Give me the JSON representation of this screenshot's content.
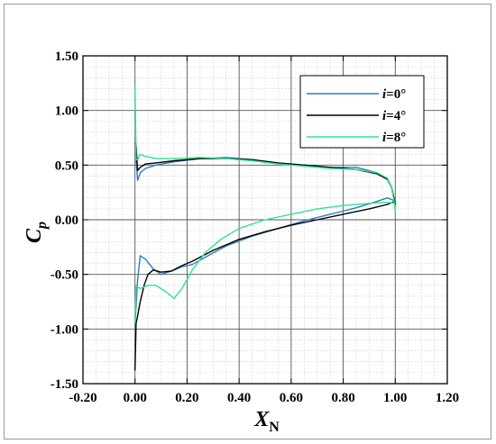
{
  "chart_data": {
    "type": "line",
    "xlabel": {
      "main": "X",
      "sub": "N"
    },
    "ylabel": {
      "main": "C",
      "sub": "p"
    },
    "xlim": [
      -0.2,
      1.2
    ],
    "ylim": [
      -1.5,
      1.5
    ],
    "xticks": [
      "-0.20",
      "0.00",
      "0.20",
      "0.40",
      "0.60",
      "0.80",
      "1.00",
      "1.20"
    ],
    "yticks": [
      "-1.50",
      "-1.00",
      "-0.50",
      "0.00",
      "0.50",
      "1.00",
      "1.50"
    ],
    "grid": "major-and-minor",
    "legend_position": "top-right",
    "series": [
      {
        "name": "i=0°",
        "color": "#2e7cc0",
        "upper": [
          [
            0.0,
            1.0
          ],
          [
            0.004,
            0.55
          ],
          [
            0.01,
            0.36
          ],
          [
            0.02,
            0.43
          ],
          [
            0.04,
            0.47
          ],
          [
            0.08,
            0.5
          ],
          [
            0.15,
            0.53
          ],
          [
            0.25,
            0.56
          ],
          [
            0.35,
            0.57
          ],
          [
            0.45,
            0.55
          ],
          [
            0.55,
            0.52
          ],
          [
            0.65,
            0.5
          ],
          [
            0.75,
            0.48
          ],
          [
            0.85,
            0.48
          ],
          [
            0.93,
            0.43
          ],
          [
            0.97,
            0.37
          ],
          [
            0.985,
            0.3
          ],
          [
            0.995,
            0.2
          ],
          [
            1.0,
            0.17
          ]
        ],
        "lower": [
          [
            0.0,
            -0.95
          ],
          [
            0.01,
            -0.55
          ],
          [
            0.02,
            -0.33
          ],
          [
            0.04,
            -0.36
          ],
          [
            0.07,
            -0.45
          ],
          [
            0.1,
            -0.5
          ],
          [
            0.14,
            -0.47
          ],
          [
            0.18,
            -0.43
          ],
          [
            0.22,
            -0.41
          ],
          [
            0.28,
            -0.33
          ],
          [
            0.35,
            -0.24
          ],
          [
            0.45,
            -0.15
          ],
          [
            0.55,
            -0.08
          ],
          [
            0.65,
            -0.01
          ],
          [
            0.75,
            0.05
          ],
          [
            0.85,
            0.11
          ],
          [
            0.92,
            0.16
          ],
          [
            0.97,
            0.2
          ],
          [
            1.0,
            0.17
          ]
        ]
      },
      {
        "name": "i=4°",
        "color": "#000000",
        "upper": [
          [
            0.0,
            0.7
          ],
          [
            0.004,
            0.68
          ],
          [
            0.01,
            0.45
          ],
          [
            0.02,
            0.48
          ],
          [
            0.04,
            0.51
          ],
          [
            0.08,
            0.52
          ],
          [
            0.15,
            0.54
          ],
          [
            0.25,
            0.56
          ],
          [
            0.35,
            0.56
          ],
          [
            0.45,
            0.55
          ],
          [
            0.55,
            0.52
          ],
          [
            0.65,
            0.5
          ],
          [
            0.75,
            0.48
          ],
          [
            0.85,
            0.46
          ],
          [
            0.93,
            0.42
          ],
          [
            0.97,
            0.37
          ],
          [
            0.985,
            0.3
          ],
          [
            0.995,
            0.2
          ],
          [
            1.0,
            0.14
          ]
        ],
        "lower": [
          [
            0.0,
            -1.38
          ],
          [
            0.004,
            -0.95
          ],
          [
            0.01,
            -0.88
          ],
          [
            0.02,
            -0.75
          ],
          [
            0.035,
            -0.6
          ],
          [
            0.05,
            -0.5
          ],
          [
            0.07,
            -0.46
          ],
          [
            0.1,
            -0.48
          ],
          [
            0.14,
            -0.47
          ],
          [
            0.18,
            -0.42
          ],
          [
            0.22,
            -0.38
          ],
          [
            0.3,
            -0.28
          ],
          [
            0.4,
            -0.18
          ],
          [
            0.5,
            -0.11
          ],
          [
            0.6,
            -0.05
          ],
          [
            0.7,
            0.0
          ],
          [
            0.8,
            0.05
          ],
          [
            0.9,
            0.1
          ],
          [
            0.97,
            0.14
          ],
          [
            1.0,
            0.17
          ]
        ]
      },
      {
        "name": "i=8°",
        "color": "#2ee58f",
        "upper": [
          [
            0.0,
            1.22
          ],
          [
            0.004,
            0.55
          ],
          [
            0.01,
            0.55
          ],
          [
            0.02,
            0.6
          ],
          [
            0.04,
            0.58
          ],
          [
            0.08,
            0.56
          ],
          [
            0.15,
            0.56
          ],
          [
            0.25,
            0.57
          ],
          [
            0.35,
            0.56
          ],
          [
            0.45,
            0.54
          ],
          [
            0.55,
            0.51
          ],
          [
            0.65,
            0.49
          ],
          [
            0.75,
            0.47
          ],
          [
            0.85,
            0.46
          ],
          [
            0.93,
            0.43
          ],
          [
            0.97,
            0.38
          ],
          [
            0.985,
            0.3
          ],
          [
            0.995,
            0.18
          ],
          [
            1.0,
            0.07
          ]
        ],
        "lower": [
          [
            0.0,
            -0.95
          ],
          [
            0.004,
            -0.6
          ],
          [
            0.02,
            -0.63
          ],
          [
            0.05,
            -0.6
          ],
          [
            0.08,
            -0.6
          ],
          [
            0.12,
            -0.66
          ],
          [
            0.15,
            -0.72
          ],
          [
            0.18,
            -0.63
          ],
          [
            0.22,
            -0.46
          ],
          [
            0.27,
            -0.3
          ],
          [
            0.33,
            -0.18
          ],
          [
            0.4,
            -0.08
          ],
          [
            0.5,
            0.0
          ],
          [
            0.6,
            0.05
          ],
          [
            0.7,
            0.1
          ],
          [
            0.8,
            0.13
          ],
          [
            0.9,
            0.15
          ],
          [
            0.97,
            0.16
          ],
          [
            1.0,
            0.15
          ]
        ]
      }
    ]
  }
}
